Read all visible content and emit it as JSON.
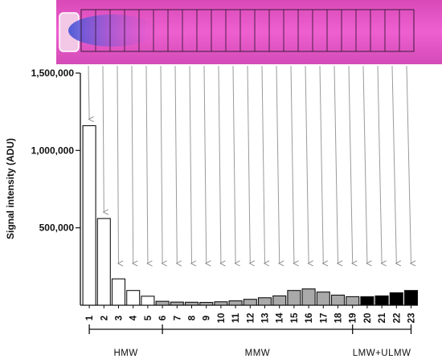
{
  "chart_data": {
    "type": "bar",
    "ylabel": "Signal intensity (ADU)",
    "ylim": [
      0,
      1500000
    ],
    "yticks": [
      {
        "value": 500000,
        "label": "500,000"
      },
      {
        "value": 1000000,
        "label": "1,000,000"
      },
      {
        "value": 1500000,
        "label": "1,500,000"
      }
    ],
    "categories": [
      "1",
      "2",
      "3",
      "4",
      "5",
      "6",
      "7",
      "8",
      "9",
      "10",
      "11",
      "12",
      "13",
      "14",
      "15",
      "16",
      "17",
      "18",
      "19",
      "20",
      "21",
      "22",
      "23"
    ],
    "values": [
      1160000,
      560000,
      170000,
      95000,
      58000,
      25000,
      20000,
      19000,
      18000,
      22000,
      28000,
      38000,
      48000,
      60000,
      95000,
      105000,
      85000,
      65000,
      55000,
      55000,
      60000,
      80000,
      95000
    ],
    "groups": [
      {
        "name": "HMW",
        "from": 1,
        "to": 5,
        "color": "#ffffff"
      },
      {
        "name": "MMW",
        "from": 6,
        "to": 19,
        "color": "#a9a9a9"
      },
      {
        "name": "LMW+ULMW",
        "from": 20,
        "to": 23,
        "color": "#000000"
      }
    ],
    "group_brackets": [
      {
        "label": "HMW",
        "from": 1,
        "to": 6
      },
      {
        "label": "MMW",
        "from": 6,
        "to": 19
      },
      {
        "label": "LMW+ULMW",
        "from": 19,
        "to": 23
      }
    ],
    "gel_image": {
      "lanes": 23,
      "background": "#e94fc8",
      "stain": "#6a55d6"
    }
  }
}
